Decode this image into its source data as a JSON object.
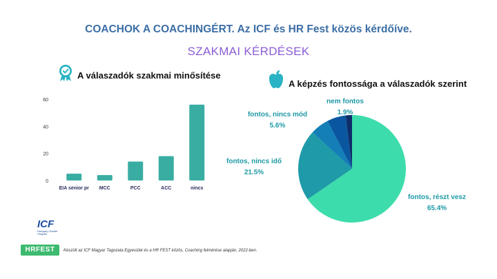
{
  "title": "COACHOK A COACHINGÉRT. Az ICF és HR Fest közös kérdőíve.",
  "subtitle": "SZAKMAI KÉRDÉSEK",
  "left_heading": "A válaszadók szakmai minősítése",
  "right_heading": "A képzés fontossága a válaszadók szerint",
  "footer": "Készült az ICF Magyar Tagozata Egyesület és a HR FEST közös, Coaching felmérése alapján, 2022-ben.",
  "logos": {
    "icf": "ICF",
    "icf_sub": "Hungary Charter Chapter",
    "hrfest": "HRFEST"
  },
  "icons": {
    "left": "certificate-badge-icon",
    "right": "apple-icon"
  },
  "colors": {
    "bar": "#3aada3",
    "pie": [
      "#3ddcac",
      "#1f9aa8",
      "#137fb6",
      "#0a57a0",
      "#0d2e6a"
    ]
  },
  "chart_data": [
    {
      "type": "bar",
      "categories": [
        "EIA senior pr",
        "MCC",
        "PCC",
        "ACC",
        "nincs"
      ],
      "values": [
        5,
        4,
        14,
        18,
        56
      ],
      "yticks": [
        0,
        20,
        40,
        60
      ],
      "ylim": [
        0,
        60
      ],
      "grid": false
    },
    {
      "type": "pie",
      "slices": [
        {
          "label": "fontos, részt vesz",
          "value": 65.4,
          "value_label": "65.4%"
        },
        {
          "label": "fontos, nincs idő",
          "value": 21.5,
          "value_label": "21.5%"
        },
        {
          "label": "fontos, nincs mód",
          "value": 5.6,
          "value_label": "5.6%"
        },
        {
          "label": "",
          "value": 5.6,
          "value_label": ""
        },
        {
          "label": "nem fontos",
          "value": 1.9,
          "value_label": "1.9%"
        }
      ]
    }
  ]
}
